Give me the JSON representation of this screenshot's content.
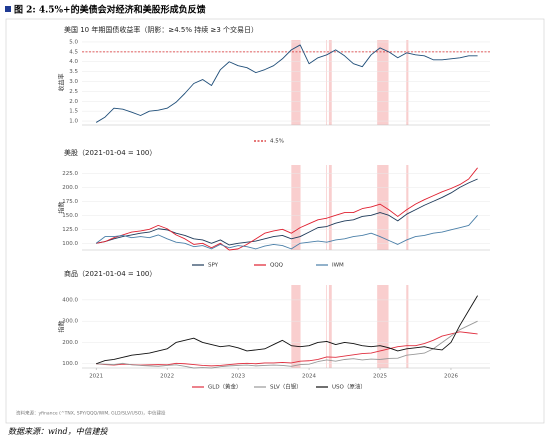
{
  "figure_title": "图 2: 4.5%+的美债会对经济和美股形成负反馈",
  "chart_note": "资料来源：yfinance (^TNX, SPY/QQQ/IWM, GLD/SLV/USO)，中信建投",
  "source": "数据来源：wind，中信建投",
  "shaded_periods": [
    [
      2023.75,
      2023.88
    ],
    [
      2024.24,
      2024.25
    ],
    [
      2024.28,
      2024.32
    ],
    [
      2024.96,
      2025.12
    ],
    [
      2025.37,
      2025.4
    ]
  ],
  "chart_data": [
    {
      "type": "line",
      "title": "美国 10 年期国债收益率（阴影：≥4.5% 持续 ≥3 个交易日）",
      "ylabel": "收益率",
      "x": [
        2021,
        2021.125,
        2021.25,
        2021.375,
        2021.5,
        2021.625,
        2021.75,
        2021.875,
        2022,
        2022.125,
        2022.25,
        2022.375,
        2022.5,
        2022.625,
        2022.75,
        2022.875,
        2023,
        2023.125,
        2023.25,
        2023.375,
        2023.5,
        2023.625,
        2023.75,
        2023.875,
        2024,
        2024.125,
        2024.25,
        2024.375,
        2024.5,
        2024.625,
        2024.75,
        2024.875,
        2025,
        2025.125,
        2025.25,
        2025.375,
        2025.5,
        2025.625,
        2025.75,
        2025.875,
        2026,
        2026.125,
        2026.25,
        2026.375
      ],
      "xlim": [
        2020.8,
        2026.55
      ],
      "ylim": [
        0.8,
        5.1
      ],
      "yticks": [
        {
          "value": 1,
          "label": "1.0"
        },
        1.5,
        {
          "value": 2,
          "label": "2.0"
        },
        2.5,
        {
          "value": 3,
          "label": "3.0"
        },
        3.5,
        {
          "value": 4,
          "label": "4.0"
        },
        4.5,
        {
          "value": 5,
          "label": "5.0"
        }
      ],
      "grid": true,
      "threshold": {
        "value": 4.5,
        "label": "4.5%",
        "color": "#d62728"
      },
      "series": [
        {
          "color": "#1f4e79",
          "values": [
            0.93,
            1.2,
            1.65,
            1.6,
            1.45,
            1.28,
            1.5,
            1.55,
            1.65,
            1.95,
            2.4,
            2.9,
            3.1,
            2.8,
            3.6,
            4.0,
            3.8,
            3.7,
            3.45,
            3.6,
            3.8,
            4.15,
            4.6,
            4.85,
            3.9,
            4.2,
            4.35,
            4.6,
            4.3,
            3.9,
            3.75,
            4.35,
            4.7,
            4.5,
            4.2,
            4.45,
            4.35,
            4.3,
            4.1,
            4.1,
            4.15,
            4.2,
            4.3,
            4.3
          ]
        }
      ]
    },
    {
      "type": "line",
      "title": "美股（2021-01-04 = 100）",
      "ylabel": "指数",
      "x": [
        2021,
        2021.125,
        2021.25,
        2021.375,
        2021.5,
        2021.625,
        2021.75,
        2021.875,
        2022,
        2022.125,
        2022.25,
        2022.375,
        2022.5,
        2022.625,
        2022.75,
        2022.875,
        2023,
        2023.125,
        2023.25,
        2023.375,
        2023.5,
        2023.625,
        2023.75,
        2023.875,
        2024,
        2024.125,
        2024.25,
        2024.375,
        2024.5,
        2024.625,
        2024.75,
        2024.875,
        2025,
        2025.125,
        2025.25,
        2025.375,
        2025.5,
        2025.625,
        2025.75,
        2025.875,
        2026,
        2026.125,
        2026.25,
        2026.375
      ],
      "xlim": [
        2020.8,
        2026.55
      ],
      "ylim": [
        88,
        240
      ],
      "yticks": [
        {
          "value": 100,
          "label": "100.0"
        },
        {
          "value": 125,
          "label": "125.0"
        },
        {
          "value": 150,
          "label": "150.0"
        },
        {
          "value": 175,
          "label": "175.0"
        },
        {
          "value": 200,
          "label": "200.0"
        },
        {
          "value": 225,
          "label": "225.0"
        }
      ],
      "grid": true,
      "series": [
        {
          "name": "SPY",
          "color": "#1f3b5a",
          "values": [
            100,
            103,
            108,
            112,
            115,
            118,
            120,
            126,
            124,
            118,
            114,
            108,
            106,
            100,
            106,
            97,
            100,
            102,
            104,
            108,
            112,
            114,
            108,
            112,
            120,
            128,
            130,
            136,
            140,
            142,
            148,
            150,
            155,
            150,
            140,
            152,
            160,
            168,
            175,
            182,
            190,
            200,
            208,
            215
          ]
        },
        {
          "name": "QQQ",
          "color": "#e02030",
          "values": [
            100,
            103,
            110,
            115,
            120,
            122,
            125,
            132,
            126,
            115,
            108,
            98,
            100,
            92,
            100,
            88,
            90,
            98,
            108,
            118,
            122,
            125,
            118,
            128,
            135,
            142,
            145,
            150,
            155,
            155,
            162,
            165,
            170,
            160,
            148,
            160,
            170,
            178,
            185,
            192,
            198,
            205,
            215,
            235
          ]
        },
        {
          "name": "IWM",
          "color": "#4a7fa8",
          "values": [
            100,
            112,
            112,
            114,
            110,
            112,
            110,
            115,
            108,
            102,
            100,
            94,
            96,
            90,
            98,
            92,
            96,
            94,
            90,
            95,
            98,
            96,
            90,
            100,
            102,
            104,
            102,
            106,
            108,
            112,
            114,
            118,
            112,
            105,
            98,
            106,
            112,
            114,
            118,
            120,
            124,
            128,
            132,
            150
          ]
        }
      ]
    },
    {
      "type": "line",
      "title": "商品（2021-01-04 = 100）",
      "ylabel": "指数",
      "x": [
        2021,
        2021.125,
        2021.25,
        2021.375,
        2021.5,
        2021.625,
        2021.75,
        2021.875,
        2022,
        2022.125,
        2022.25,
        2022.375,
        2022.5,
        2022.625,
        2022.75,
        2022.875,
        2023,
        2023.125,
        2023.25,
        2023.375,
        2023.5,
        2023.625,
        2023.75,
        2023.875,
        2024,
        2024.125,
        2024.25,
        2024.375,
        2024.5,
        2024.625,
        2024.75,
        2024.875,
        2025,
        2025.125,
        2025.25,
        2025.375,
        2025.5,
        2025.625,
        2025.75,
        2025.875,
        2026,
        2026.125,
        2026.25,
        2026.375
      ],
      "xlim": [
        2020.8,
        2026.55
      ],
      "ylim": [
        80,
        470
      ],
      "xticks": [
        2021,
        2022,
        2023,
        2024,
        2025,
        2026
      ],
      "yticks": [
        {
          "value": 100,
          "label": "100.0"
        },
        {
          "value": 200,
          "label": "200.0"
        },
        {
          "value": 300,
          "label": "300.0"
        },
        {
          "value": 400,
          "label": "400.0"
        }
      ],
      "grid": true,
      "series": [
        {
          "name": "GLD（黄金）",
          "color": "#e03040",
          "values": [
            100,
            96,
            94,
            98,
            96,
            94,
            95,
            96,
            95,
            102,
            100,
            96,
            92,
            90,
            92,
            96,
            100,
            102,
            100,
            104,
            104,
            106,
            104,
            112,
            114,
            120,
            132,
            130,
            136,
            142,
            148,
            150,
            160,
            170,
            180,
            185,
            185,
            195,
            210,
            230,
            240,
            250,
            245,
            240
          ]
        },
        {
          "name": "SLV（白银）",
          "color": "#999999",
          "values": [
            100,
            98,
            96,
            102,
            95,
            92,
            90,
            88,
            92,
            95,
            88,
            80,
            82,
            80,
            86,
            90,
            92,
            94,
            90,
            92,
            94,
            92,
            88,
            96,
            98,
            110,
            118,
            112,
            120,
            124,
            118,
            122,
            120,
            125,
            126,
            140,
            145,
            150,
            170,
            200,
            230,
            260,
            280,
            300
          ]
        },
        {
          "name": "USO（原油）",
          "color": "#111111",
          "values": [
            100,
            115,
            120,
            130,
            140,
            145,
            150,
            160,
            170,
            200,
            210,
            220,
            200,
            190,
            180,
            185,
            175,
            160,
            165,
            170,
            190,
            210,
            185,
            180,
            185,
            200,
            205,
            190,
            200,
            195,
            185,
            180,
            185,
            175,
            160,
            170,
            175,
            180,
            170,
            165,
            200,
            280,
            350,
            420
          ]
        }
      ]
    }
  ]
}
